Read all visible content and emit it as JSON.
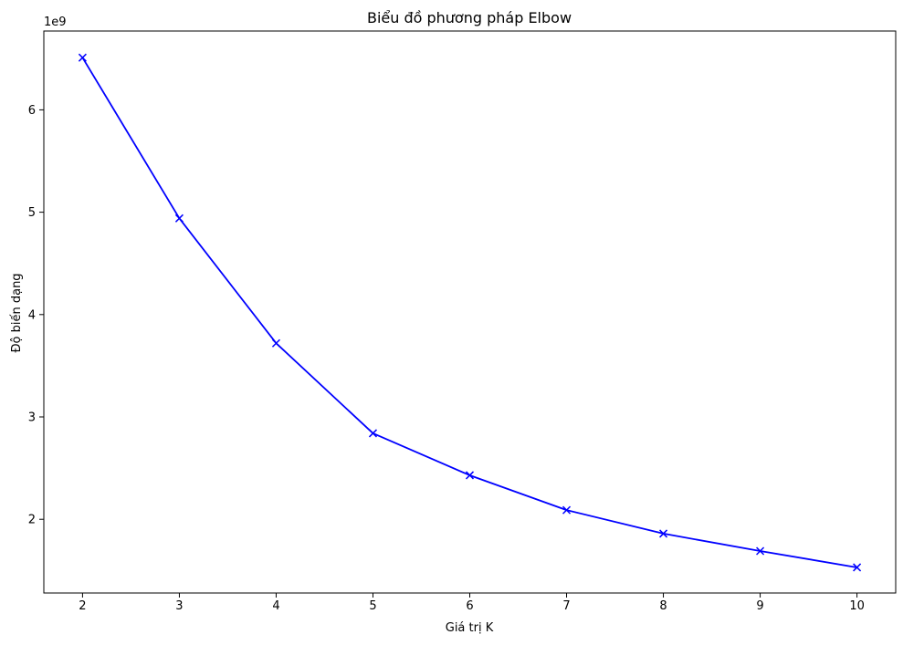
{
  "chart_data": {
    "type": "line",
    "title": "Biểu đồ phương pháp Elbow",
    "xlabel": "Giá trị K",
    "ylabel": "Độ biến dạng",
    "y_offset_label": "1e9",
    "x": [
      2,
      3,
      4,
      5,
      6,
      7,
      8,
      9,
      10
    ],
    "series": [
      {
        "values": [
          6.51,
          4.94,
          3.72,
          2.84,
          2.43,
          2.09,
          1.86,
          1.69,
          1.53
        ],
        "color": "#0000ff",
        "marker": "x"
      }
    ],
    "xlim": [
      1.6,
      10.4
    ],
    "ylim": [
      1.28,
      6.77
    ],
    "x_ticks": [
      "2",
      "3",
      "4",
      "5",
      "6",
      "7",
      "8",
      "9",
      "10"
    ],
    "y_ticks": [
      "2",
      "3",
      "4",
      "5",
      "6"
    ],
    "grid": false,
    "legend": "none"
  }
}
